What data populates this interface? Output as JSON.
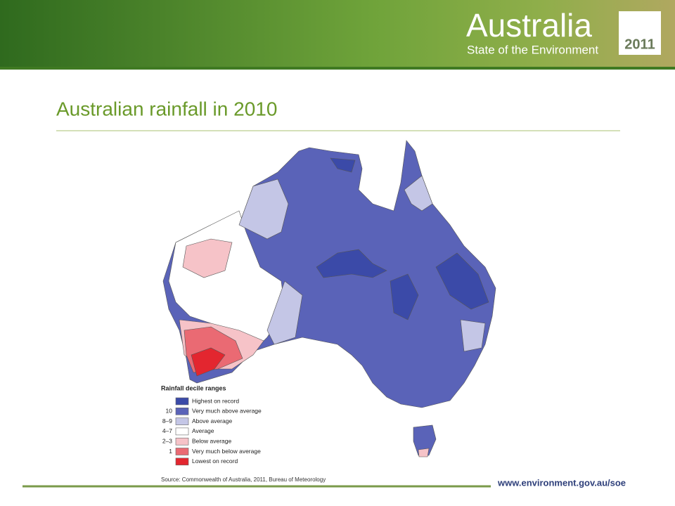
{
  "header": {
    "brand": "Australia",
    "subtitle": "State of the Environment",
    "year": "2011"
  },
  "title": "Australian rainfall in 2010",
  "legend": {
    "title": "Rainfall decile ranges",
    "items": [
      {
        "label": "Highest on record",
        "color": "#3b4aa8"
      },
      {
        "decile": "10",
        "label": "Very much above average",
        "color": "#5a63b8"
      },
      {
        "decile": "8–9",
        "label": "Above average",
        "color": "#c4c6e6"
      },
      {
        "decile": "4–7",
        "label": "Average",
        "color": "#ffffff"
      },
      {
        "decile": "2–3",
        "label": "Below average",
        "color": "#f6c3c8"
      },
      {
        "decile": "1",
        "label": "Very much below average",
        "color": "#ea6a73"
      },
      {
        "label": "Lowest on record",
        "color": "#e3262f"
      }
    ]
  },
  "source": "Source: Commonwealth of Australia, 2011, Bureau of Meteorology",
  "footer": {
    "url": "www.environment.gov.au/soe"
  }
}
